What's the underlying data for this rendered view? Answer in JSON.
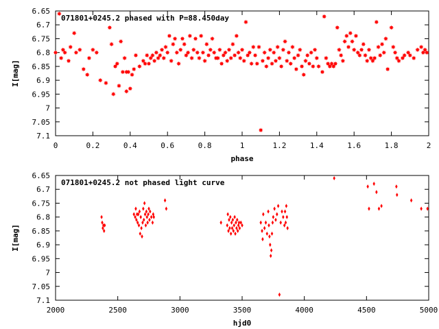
{
  "chart_data": [
    {
      "type": "scatter",
      "title": "071801+0245.2 phased with P=88.450day",
      "xlabel": "phase",
      "ylabel": "I[mag]",
      "xlim": [
        0,
        2
      ],
      "ylim": [
        6.65,
        7.1
      ],
      "y_inverted": true,
      "grid": false,
      "x_ticks": [
        "0",
        "0.2",
        "0.4",
        "0.6",
        "0.8",
        "1",
        "1.2",
        "1.4",
        "1.6",
        "1.8",
        "2"
      ],
      "y_ticks": [
        "6.65",
        "6.7",
        "6.75",
        "6.8",
        "6.85",
        "6.9",
        "6.95",
        "7",
        "7.05",
        "7.1"
      ],
      "marker_color": "#ff0000",
      "points": [
        [
          0.0,
          6.8
        ],
        [
          0.02,
          6.66
        ],
        [
          0.03,
          6.82
        ],
        [
          0.04,
          6.79
        ],
        [
          0.05,
          6.8
        ],
        [
          0.07,
          6.83
        ],
        [
          0.08,
          6.78
        ],
        [
          0.1,
          6.73
        ],
        [
          0.11,
          6.8
        ],
        [
          0.13,
          6.79
        ],
        [
          0.15,
          6.86
        ],
        [
          0.17,
          6.88
        ],
        [
          0.18,
          6.82
        ],
        [
          0.2,
          6.79
        ],
        [
          0.22,
          6.8
        ],
        [
          0.24,
          6.9
        ],
        [
          0.27,
          6.91
        ],
        [
          0.29,
          6.71
        ],
        [
          0.3,
          6.77
        ],
        [
          0.31,
          6.95
        ],
        [
          0.32,
          6.85
        ],
        [
          0.33,
          6.84
        ],
        [
          0.34,
          6.92
        ],
        [
          0.35,
          6.76
        ],
        [
          0.36,
          6.87
        ],
        [
          0.37,
          6.82
        ],
        [
          0.38,
          6.87
        ],
        [
          0.38,
          6.94
        ],
        [
          0.39,
          6.87
        ],
        [
          0.4,
          6.93
        ],
        [
          0.41,
          6.88
        ],
        [
          0.42,
          6.86
        ],
        [
          0.43,
          6.81
        ],
        [
          0.45,
          6.85
        ],
        [
          0.47,
          6.83
        ],
        [
          0.48,
          6.84
        ],
        [
          0.49,
          6.81
        ],
        [
          0.5,
          6.84
        ],
        [
          0.51,
          6.82
        ],
        [
          0.52,
          6.81
        ],
        [
          0.53,
          6.83
        ],
        [
          0.54,
          6.8
        ],
        [
          0.55,
          6.82
        ],
        [
          0.56,
          6.81
        ],
        [
          0.57,
          6.79
        ],
        [
          0.58,
          6.82
        ],
        [
          0.59,
          6.78
        ],
        [
          0.6,
          6.8
        ],
        [
          0.61,
          6.74
        ],
        [
          0.62,
          6.83
        ],
        [
          0.63,
          6.77
        ],
        [
          0.64,
          6.75
        ],
        [
          0.65,
          6.8
        ],
        [
          0.66,
          6.84
        ],
        [
          0.67,
          6.79
        ],
        [
          0.68,
          6.75
        ],
        [
          0.69,
          6.77
        ],
        [
          0.7,
          6.81
        ],
        [
          0.71,
          6.8
        ],
        [
          0.72,
          6.74
        ],
        [
          0.73,
          6.82
        ],
        [
          0.74,
          6.79
        ],
        [
          0.75,
          6.75
        ],
        [
          0.76,
          6.8
        ],
        [
          0.77,
          6.82
        ],
        [
          0.78,
          6.74
        ],
        [
          0.79,
          6.8
        ],
        [
          0.8,
          6.83
        ],
        [
          0.81,
          6.77
        ],
        [
          0.82,
          6.81
        ],
        [
          0.83,
          6.79
        ],
        [
          0.84,
          6.75
        ],
        [
          0.85,
          6.8
        ],
        [
          0.86,
          6.82
        ],
        [
          0.87,
          6.82
        ],
        [
          0.88,
          6.79
        ],
        [
          0.89,
          6.84
        ],
        [
          0.9,
          6.81
        ],
        [
          0.91,
          6.8
        ],
        [
          0.92,
          6.83
        ],
        [
          0.93,
          6.79
        ],
        [
          0.94,
          6.82
        ],
        [
          0.95,
          6.77
        ],
        [
          0.96,
          6.81
        ],
        [
          0.97,
          6.74
        ],
        [
          0.98,
          6.8
        ],
        [
          0.99,
          6.82
        ],
        [
          1.0,
          6.79
        ],
        [
          1.01,
          6.83
        ],
        [
          1.02,
          6.69
        ],
        [
          1.03,
          6.81
        ],
        [
          1.04,
          6.8
        ],
        [
          1.05,
          6.84
        ],
        [
          1.06,
          6.78
        ],
        [
          1.07,
          6.81
        ],
        [
          1.08,
          6.84
        ],
        [
          1.09,
          6.78
        ],
        [
          1.1,
          7.08
        ],
        [
          1.11,
          6.83
        ],
        [
          1.12,
          6.8
        ],
        [
          1.13,
          6.85
        ],
        [
          1.14,
          6.82
        ],
        [
          1.15,
          6.79
        ],
        [
          1.16,
          6.84
        ],
        [
          1.17,
          6.8
        ],
        [
          1.18,
          6.83
        ],
        [
          1.19,
          6.78
        ],
        [
          1.2,
          6.82
        ],
        [
          1.21,
          6.85
        ],
        [
          1.22,
          6.79
        ],
        [
          1.23,
          6.76
        ],
        [
          1.24,
          6.83
        ],
        [
          1.25,
          6.8
        ],
        [
          1.26,
          6.84
        ],
        [
          1.27,
          6.78
        ],
        [
          1.28,
          6.82
        ],
        [
          1.29,
          6.86
        ],
        [
          1.3,
          6.81
        ],
        [
          1.31,
          6.79
        ],
        [
          1.32,
          6.85
        ],
        [
          1.33,
          6.88
        ],
        [
          1.34,
          6.83
        ],
        [
          1.35,
          6.81
        ],
        [
          1.36,
          6.84
        ],
        [
          1.37,
          6.8
        ],
        [
          1.38,
          6.85
        ],
        [
          1.39,
          6.79
        ],
        [
          1.4,
          6.82
        ],
        [
          1.41,
          6.85
        ],
        [
          1.43,
          6.87
        ],
        [
          1.44,
          6.67
        ],
        [
          1.45,
          6.82
        ],
        [
          1.46,
          6.84
        ],
        [
          1.47,
          6.85
        ],
        [
          1.48,
          6.84
        ],
        [
          1.49,
          6.85
        ],
        [
          1.5,
          6.84
        ],
        [
          1.51,
          6.71
        ],
        [
          1.52,
          6.79
        ],
        [
          1.53,
          6.81
        ],
        [
          1.54,
          6.83
        ],
        [
          1.55,
          6.76
        ],
        [
          1.56,
          6.74
        ],
        [
          1.57,
          6.78
        ],
        [
          1.58,
          6.73
        ],
        [
          1.59,
          6.76
        ],
        [
          1.6,
          6.79
        ],
        [
          1.61,
          6.74
        ],
        [
          1.62,
          6.8
        ],
        [
          1.63,
          6.81
        ],
        [
          1.64,
          6.79
        ],
        [
          1.65,
          6.77
        ],
        [
          1.66,
          6.81
        ],
        [
          1.67,
          6.83
        ],
        [
          1.68,
          6.79
        ],
        [
          1.69,
          6.82
        ],
        [
          1.7,
          6.83
        ],
        [
          1.71,
          6.82
        ],
        [
          1.72,
          6.69
        ],
        [
          1.73,
          6.78
        ],
        [
          1.74,
          6.81
        ],
        [
          1.75,
          6.77
        ],
        [
          1.76,
          6.8
        ],
        [
          1.77,
          6.75
        ],
        [
          1.78,
          6.86
        ],
        [
          1.8,
          6.71
        ],
        [
          1.81,
          6.78
        ],
        [
          1.82,
          6.8
        ],
        [
          1.83,
          6.82
        ],
        [
          1.84,
          6.83
        ],
        [
          1.86,
          6.82
        ],
        [
          1.87,
          6.81
        ],
        [
          1.89,
          6.8
        ],
        [
          1.9,
          6.81
        ],
        [
          1.92,
          6.82
        ],
        [
          1.94,
          6.79
        ],
        [
          1.96,
          6.78
        ],
        [
          1.97,
          6.8
        ],
        [
          1.98,
          6.79
        ],
        [
          1.99,
          6.8
        ]
      ]
    },
    {
      "type": "scatter",
      "title": "071801+0245.2 not phased light curve",
      "xlabel": "hjd0",
      "ylabel": "I[mag]",
      "xlim": [
        2000,
        5000
      ],
      "ylim": [
        6.65,
        7.1
      ],
      "y_inverted": true,
      "grid": false,
      "x_ticks": [
        "2000",
        "2500",
        "3000",
        "3500",
        "4000",
        "4500",
        "5000"
      ],
      "y_ticks": [
        "6.65",
        "6.7",
        "6.75",
        "6.8",
        "6.85",
        "6.9",
        "6.95",
        "7",
        "7.05",
        "7.1"
      ],
      "marker_color": "#ff0000",
      "points": [
        [
          2370,
          6.8
        ],
        [
          2375,
          6.82
        ],
        [
          2380,
          6.84
        ],
        [
          2385,
          6.83
        ],
        [
          2390,
          6.85
        ],
        [
          2395,
          6.83
        ],
        [
          2630,
          6.79
        ],
        [
          2640,
          6.8
        ],
        [
          2645,
          6.77
        ],
        [
          2650,
          6.81
        ],
        [
          2655,
          6.79
        ],
        [
          2660,
          6.82
        ],
        [
          2665,
          6.79
        ],
        [
          2670,
          6.83
        ],
        [
          2675,
          6.78
        ],
        [
          2680,
          6.86
        ],
        [
          2685,
          6.8
        ],
        [
          2690,
          6.84
        ],
        [
          2695,
          6.87
        ],
        [
          2700,
          6.82
        ],
        [
          2705,
          6.77
        ],
        [
          2710,
          6.81
        ],
        [
          2715,
          6.75
        ],
        [
          2720,
          6.79
        ],
        [
          2725,
          6.83
        ],
        [
          2730,
          6.78
        ],
        [
          2735,
          6.8
        ],
        [
          2740,
          6.82
        ],
        [
          2745,
          6.79
        ],
        [
          2750,
          6.77
        ],
        [
          2755,
          6.81
        ],
        [
          2760,
          6.78
        ],
        [
          2770,
          6.8
        ],
        [
          2780,
          6.82
        ],
        [
          2785,
          6.79
        ],
        [
          2790,
          6.8
        ],
        [
          2880,
          6.74
        ],
        [
          2890,
          6.77
        ],
        [
          3330,
          6.82
        ],
        [
          3380,
          6.83
        ],
        [
          3385,
          6.79
        ],
        [
          3390,
          6.85
        ],
        [
          3395,
          6.81
        ],
        [
          3400,
          6.84
        ],
        [
          3405,
          6.8
        ],
        [
          3410,
          6.86
        ],
        [
          3415,
          6.82
        ],
        [
          3420,
          6.84
        ],
        [
          3425,
          6.81
        ],
        [
          3430,
          6.85
        ],
        [
          3435,
          6.83
        ],
        [
          3440,
          6.8
        ],
        [
          3445,
          6.86
        ],
        [
          3450,
          6.82
        ],
        [
          3455,
          6.84
        ],
        [
          3460,
          6.81
        ],
        [
          3465,
          6.85
        ],
        [
          3470,
          6.83
        ],
        [
          3475,
          6.82
        ],
        [
          3480,
          6.84
        ],
        [
          3490,
          6.82
        ],
        [
          3500,
          6.83
        ],
        [
          3650,
          6.82
        ],
        [
          3660,
          6.85
        ],
        [
          3665,
          6.88
        ],
        [
          3670,
          6.79
        ],
        [
          3680,
          6.84
        ],
        [
          3690,
          6.82
        ],
        [
          3700,
          6.86
        ],
        [
          3710,
          6.78
        ],
        [
          3715,
          6.83
        ],
        [
          3720,
          6.87
        ],
        [
          3725,
          6.9
        ],
        [
          3730,
          6.94
        ],
        [
          3735,
          6.92
        ],
        [
          3740,
          6.86
        ],
        [
          3745,
          6.82
        ],
        [
          3750,
          6.8
        ],
        [
          3760,
          6.77
        ],
        [
          3770,
          6.81
        ],
        [
          3780,
          6.79
        ],
        [
          3790,
          6.76
        ],
        [
          3800,
          7.08
        ],
        [
          3810,
          6.82
        ],
        [
          3820,
          6.78
        ],
        [
          3830,
          6.8
        ],
        [
          3840,
          6.83
        ],
        [
          3845,
          6.78
        ],
        [
          3850,
          6.82
        ],
        [
          3855,
          6.76
        ],
        [
          3860,
          6.8
        ],
        [
          3865,
          6.84
        ],
        [
          4240,
          6.66
        ],
        [
          4510,
          6.69
        ],
        [
          4520,
          6.77
        ],
        [
          4560,
          6.68
        ],
        [
          4580,
          6.71
        ],
        [
          4600,
          6.77
        ],
        [
          4620,
          6.76
        ],
        [
          4740,
          6.69
        ],
        [
          4745,
          6.72
        ],
        [
          4860,
          6.74
        ],
        [
          4940,
          6.77
        ],
        [
          4990,
          6.77
        ]
      ]
    }
  ]
}
